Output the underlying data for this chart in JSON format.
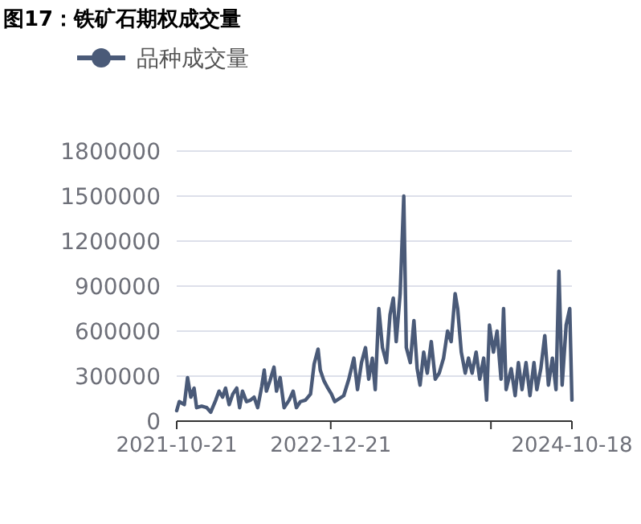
{
  "chart_data": {
    "type": "line",
    "title": "图17：铁矿石期权成交量",
    "legend": "top left",
    "grid": "y",
    "xlim": [
      "2021-10-21",
      "2024-10-18"
    ],
    "xticks": [
      {
        "value": "2021-10-21",
        "label": "2021-10-21"
      },
      {
        "value": "2022-12-21",
        "label": "2022-12-21"
      },
      {
        "value": "2024-03-08",
        "label": null
      },
      {
        "value": "2024-10-18",
        "label": "2024-10-18"
      }
    ],
    "ylim": [
      0,
      1800000
    ],
    "yticks": [
      0,
      300000,
      600000,
      900000,
      1200000,
      1500000,
      1800000
    ],
    "x": [
      "2021-10-21",
      "2021-10-28",
      "2021-11-11",
      "2021-11-20",
      "2021-11-29",
      "2021-12-08",
      "2021-12-15",
      "2021-12-29",
      "2022-01-12",
      "2022-01-23",
      "2022-02-06",
      "2022-02-15",
      "2022-02-25",
      "2022-03-05",
      "2022-03-15",
      "2022-03-25",
      "2022-04-05",
      "2022-04-13",
      "2022-04-21",
      "2022-05-02",
      "2022-05-13",
      "2022-05-23",
      "2022-06-02",
      "2022-06-13",
      "2022-06-20",
      "2022-06-26",
      "2022-07-06",
      "2022-07-17",
      "2022-07-24",
      "2022-08-03",
      "2022-08-14",
      "2022-08-28",
      "2022-09-08",
      "2022-09-17",
      "2022-09-28",
      "2022-10-12",
      "2022-10-26",
      "2022-11-05",
      "2022-11-16",
      "2022-11-22",
      "2022-12-02",
      "2022-12-13",
      "2022-12-23",
      "2023-01-01",
      "2023-01-26",
      "2023-02-09",
      "2023-02-23",
      "2023-03-05",
      "2023-03-16",
      "2023-03-27",
      "2023-04-05",
      "2023-04-15",
      "2023-04-23",
      "2023-05-03",
      "2023-05-13",
      "2023-05-24",
      "2023-06-03",
      "2023-06-12",
      "2023-06-20",
      "2023-07-01",
      "2023-07-11",
      "2023-07-18",
      "2023-07-29",
      "2023-08-08",
      "2023-08-17",
      "2023-08-25",
      "2023-09-04",
      "2023-09-14",
      "2023-09-25",
      "2023-10-06",
      "2023-10-17",
      "2023-10-29",
      "2023-11-09",
      "2023-11-19",
      "2023-11-30",
      "2023-12-07",
      "2023-12-17",
      "2023-12-28",
      "2024-01-06",
      "2024-01-16",
      "2024-01-27",
      "2024-02-06",
      "2024-02-17",
      "2024-02-25",
      "2024-03-04",
      "2024-03-15",
      "2024-03-25",
      "2024-04-05",
      "2024-04-12",
      "2024-04-19",
      "2024-05-03",
      "2024-05-14",
      "2024-05-23",
      "2024-06-02",
      "2024-06-13",
      "2024-06-24",
      "2024-07-05",
      "2024-07-13",
      "2024-07-24",
      "2024-08-04",
      "2024-08-14",
      "2024-08-25",
      "2024-09-04",
      "2024-09-12",
      "2024-09-21",
      "2024-10-02",
      "2024-10-12",
      "2024-10-18"
    ],
    "series": [
      {
        "name": "品种成交量",
        "color": "#4a5a78",
        "values": [
          70000,
          130000,
          110000,
          290000,
          160000,
          220000,
          90000,
          100000,
          90000,
          60000,
          140000,
          200000,
          160000,
          220000,
          110000,
          180000,
          220000,
          90000,
          200000,
          130000,
          140000,
          160000,
          90000,
          230000,
          340000,
          200000,
          270000,
          360000,
          200000,
          290000,
          90000,
          140000,
          200000,
          90000,
          130000,
          140000,
          180000,
          380000,
          480000,
          340000,
          270000,
          220000,
          180000,
          130000,
          170000,
          280000,
          420000,
          210000,
          390000,
          490000,
          280000,
          420000,
          210000,
          750000,
          490000,
          390000,
          710000,
          820000,
          530000,
          850000,
          1500000,
          490000,
          390000,
          670000,
          350000,
          240000,
          460000,
          320000,
          530000,
          280000,
          320000,
          420000,
          600000,
          530000,
          850000,
          750000,
          460000,
          320000,
          420000,
          320000,
          460000,
          280000,
          420000,
          140000,
          640000,
          460000,
          600000,
          280000,
          750000,
          210000,
          350000,
          170000,
          390000,
          210000,
          390000,
          170000,
          390000,
          210000,
          350000,
          570000,
          240000,
          420000,
          210000,
          1000000,
          240000,
          640000,
          750000,
          140000
        ]
      }
    ]
  }
}
